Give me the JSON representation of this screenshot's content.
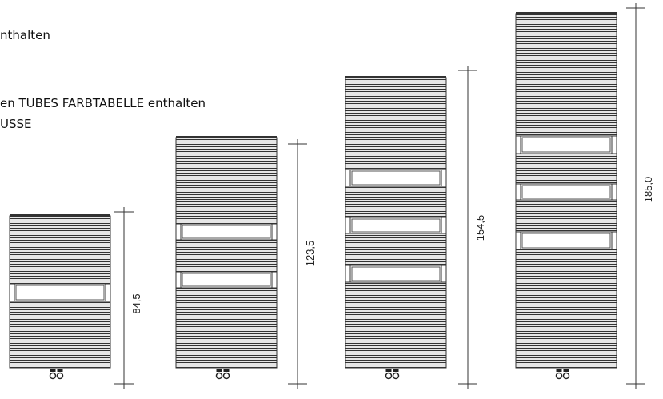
{
  "notes": [
    "nthalten",
    "en TUBES FARBTABELLE enthalten",
    "USSE"
  ],
  "radiators": [
    {
      "height_label": "84,5"
    },
    {
      "height_label": "123,5"
    },
    {
      "height_label": "154,5"
    },
    {
      "height_label": "185,0"
    }
  ]
}
